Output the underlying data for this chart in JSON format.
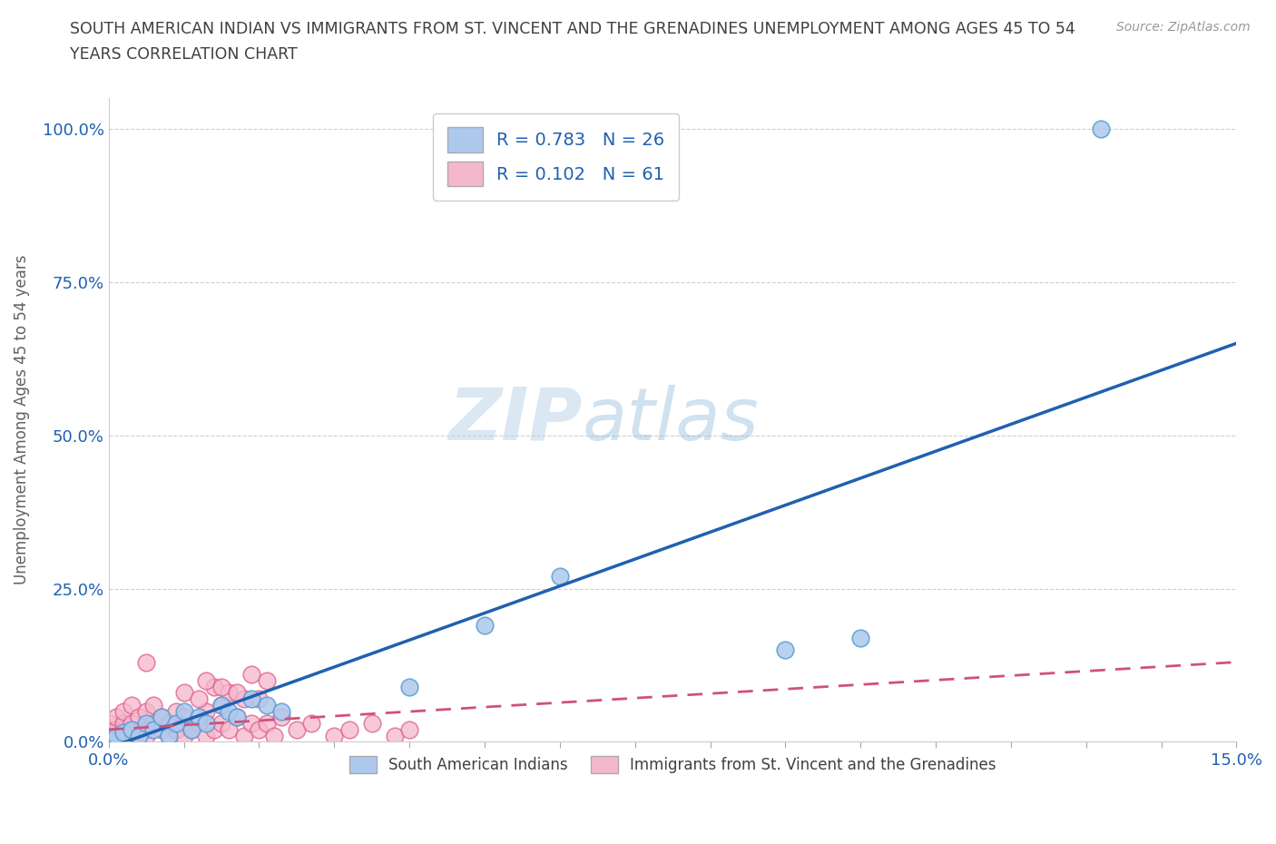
{
  "title_line1": "SOUTH AMERICAN INDIAN VS IMMIGRANTS FROM ST. VINCENT AND THE GRENADINES UNEMPLOYMENT AMONG AGES 45 TO 54",
  "title_line2": "YEARS CORRELATION CHART",
  "source_text": "Source: ZipAtlas.com",
  "ylabel": "Unemployment Among Ages 45 to 54 years",
  "watermark_zip": "ZIP",
  "watermark_atlas": "atlas",
  "xlim": [
    0.0,
    0.15
  ],
  "ylim": [
    0.0,
    1.05
  ],
  "ytick_positions": [
    0.0,
    0.25,
    0.5,
    0.75,
    1.0
  ],
  "ytick_labels": [
    "0.0%",
    "25.0%",
    "50.0%",
    "75.0%",
    "100.0%"
  ],
  "blue_R": 0.783,
  "blue_N": 26,
  "pink_R": 0.102,
  "pink_N": 61,
  "blue_label": "South American Indians",
  "pink_label": "Immigrants from St. Vincent and the Grenadines",
  "blue_scatter_x": [
    0.0,
    0.001,
    0.002,
    0.003,
    0.004,
    0.005,
    0.006,
    0.007,
    0.008,
    0.009,
    0.01,
    0.011,
    0.012,
    0.013,
    0.015,
    0.016,
    0.017,
    0.019,
    0.021,
    0.023,
    0.04,
    0.05,
    0.06,
    0.09,
    0.1,
    0.132
  ],
  "blue_scatter_y": [
    0.005,
    0.01,
    0.015,
    0.02,
    0.01,
    0.03,
    0.02,
    0.04,
    0.01,
    0.03,
    0.05,
    0.02,
    0.04,
    0.03,
    0.06,
    0.05,
    0.04,
    0.07,
    0.06,
    0.05,
    0.09,
    0.19,
    0.27,
    0.15,
    0.17,
    1.0
  ],
  "pink_scatter_x": [
    0.0,
    0.0,
    0.0,
    0.001,
    0.001,
    0.001,
    0.002,
    0.002,
    0.002,
    0.003,
    0.003,
    0.003,
    0.004,
    0.004,
    0.005,
    0.005,
    0.005,
    0.006,
    0.006,
    0.007,
    0.007,
    0.008,
    0.008,
    0.009,
    0.009,
    0.01,
    0.01,
    0.011,
    0.012,
    0.013,
    0.013,
    0.014,
    0.015,
    0.015,
    0.016,
    0.017,
    0.018,
    0.019,
    0.02,
    0.02,
    0.021,
    0.022,
    0.023,
    0.025,
    0.027,
    0.03,
    0.032,
    0.035,
    0.038,
    0.04,
    0.01,
    0.012,
    0.014,
    0.016,
    0.018,
    0.013,
    0.015,
    0.017,
    0.019,
    0.021,
    0.005
  ],
  "pink_scatter_y": [
    0.01,
    0.02,
    0.03,
    0.01,
    0.02,
    0.04,
    0.02,
    0.03,
    0.05,
    0.02,
    0.03,
    0.06,
    0.01,
    0.04,
    0.02,
    0.05,
    0.01,
    0.03,
    0.06,
    0.02,
    0.04,
    0.01,
    0.03,
    0.02,
    0.05,
    0.01,
    0.04,
    0.02,
    0.03,
    0.01,
    0.05,
    0.02,
    0.03,
    0.06,
    0.02,
    0.04,
    0.01,
    0.03,
    0.02,
    0.07,
    0.03,
    0.01,
    0.04,
    0.02,
    0.03,
    0.01,
    0.02,
    0.03,
    0.01,
    0.02,
    0.08,
    0.07,
    0.09,
    0.08,
    0.07,
    0.1,
    0.09,
    0.08,
    0.11,
    0.1,
    0.13
  ],
  "blue_line_x0": 0.0,
  "blue_line_y0": -0.01,
  "blue_line_x1": 0.15,
  "blue_line_y1": 0.65,
  "pink_line_x0": 0.0,
  "pink_line_y0": 0.02,
  "pink_line_x1": 0.15,
  "pink_line_y1": 0.13,
  "blue_color": "#adc9ed",
  "blue_edge_color": "#5a9fd4",
  "pink_color": "#f5b8cb",
  "pink_edge_color": "#e06090",
  "blue_line_color": "#2060b0",
  "pink_line_color": "#d05080",
  "background_color": "#ffffff",
  "grid_color": "#d0d0d0",
  "title_color": "#404040",
  "axis_label_color": "#606060",
  "tick_color": "#2060b0"
}
